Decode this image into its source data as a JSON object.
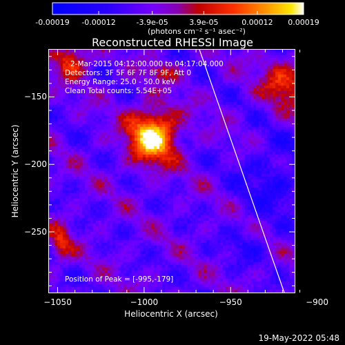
{
  "title": "Reconstructed RHESSI Image",
  "annotations": [
    "2-Mar-2015 04:12:00.000 to 04:17:04.000",
    "Detectors: 3F 5F 6F 7F 8F 9F, Att 0",
    "Energy Range: 25.0 - 50.0 keV",
    "Clean     Total counts: 5.54E+05"
  ],
  "peak_label": "Position of Peak = [-995,-179]",
  "timestamp": "19-May-2022 05:48",
  "colorbar": {
    "tick_labels": [
      "-0.00019",
      "-0.00012",
      "-3.9e-05",
      "3.9e-05",
      "0.00012",
      "0.00019"
    ],
    "units": "(photons cm⁻² s⁻¹ asec⁻²)",
    "range": [
      -0.00019,
      0.00019
    ]
  },
  "chart_data": {
    "type": "heatmap",
    "title": "Reconstructed RHESSI Image",
    "xlabel": "Heliocentric X (arcsec)",
    "ylabel": "Heliocentric Y (arcsec)",
    "xlim": [
      -1055,
      -913
    ],
    "ylim": [
      -295,
      -115
    ],
    "xticks": [
      -1050,
      -1000,
      -950,
      -900
    ],
    "xtick_labels": [
      "−1050",
      "−1000",
      "−950",
      "−900"
    ],
    "yticks": [
      -150,
      -200,
      -250
    ],
    "ytick_labels": [
      "−150",
      "−200",
      "−250"
    ],
    "value_range": [
      -0.00019,
      0.00019
    ],
    "peak": {
      "x": -995,
      "y": -179
    },
    "limb_line": [
      [
        -968,
        -115
      ],
      [
        -919,
        -295
      ]
    ],
    "colormap": "RHESSI blue-purple-red-yellow-white"
  },
  "colors": {
    "background": "#000000",
    "axes": "#ffffff",
    "limb": "#ffffff"
  }
}
